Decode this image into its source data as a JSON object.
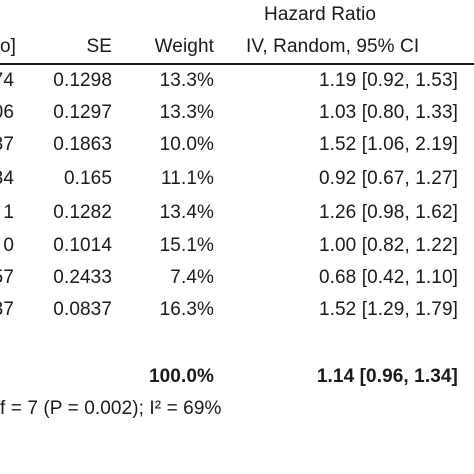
{
  "header": {
    "group_title": "Hazard Ratio",
    "col_logse_partial": "o]",
    "col_se": "SE",
    "col_weight": "Weight",
    "col_ci": "IV, Random, 95% CI"
  },
  "rows": [
    {
      "logse_partial": "74",
      "se": "0.1298",
      "weight": "13.3%",
      "ci": "1.19 [0.92, 1.53]"
    },
    {
      "logse_partial": "06",
      "se": "0.1297",
      "weight": "13.3%",
      "ci": "1.03 [0.80, 1.33]"
    },
    {
      "logse_partial": "37",
      "se": "0.1863",
      "weight": "10.0%",
      "ci": "1.52 [1.06, 2.19]"
    },
    {
      "logse_partial": "34",
      "se": "0.165",
      "weight": "11.1%",
      "ci": "0.92 [0.67, 1.27]"
    },
    {
      "logse_partial": "1",
      "se": "0.1282",
      "weight": "13.4%",
      "ci": "1.26 [0.98, 1.62]"
    },
    {
      "logse_partial": "0",
      "se": "0.1014",
      "weight": "15.1%",
      "ci": "1.00 [0.82, 1.22]"
    },
    {
      "logse_partial": "57",
      "se": "0.2433",
      "weight": "7.4%",
      "ci": "0.68 [0.42, 1.10]"
    },
    {
      "logse_partial": "37",
      "se": "0.0837",
      "weight": "16.3%",
      "ci": "1.52 [1.29, 1.79]"
    }
  ],
  "total": {
    "weight": "100.0%",
    "ci": "1.14 [0.96, 1.34]"
  },
  "heterogeneity_partial": "f = 7 (P = 0.002); I² = 69%"
}
